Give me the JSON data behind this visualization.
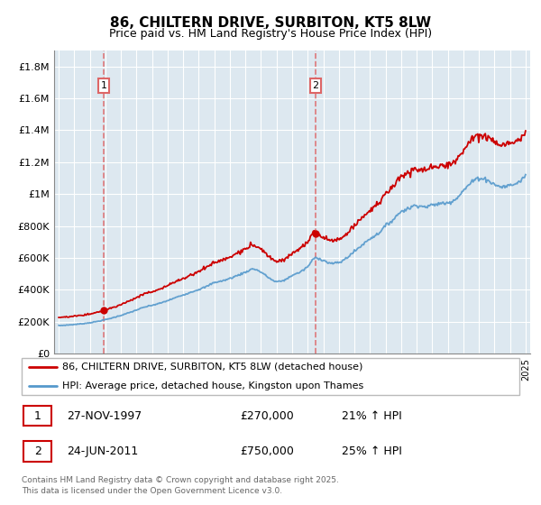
{
  "title": "86, CHILTERN DRIVE, SURBITON, KT5 8LW",
  "subtitle": "Price paid vs. HM Land Registry's House Price Index (HPI)",
  "ylabel_ticks": [
    "£0",
    "£200K",
    "£400K",
    "£600K",
    "£800K",
    "£1M",
    "£1.2M",
    "£1.4M",
    "£1.6M",
    "£1.8M"
  ],
  "ytick_values": [
    0,
    200000,
    400000,
    600000,
    800000,
    1000000,
    1200000,
    1400000,
    1600000,
    1800000
  ],
  "ylim": [
    0,
    1900000
  ],
  "legend_line1": "86, CHILTERN DRIVE, SURBITON, KT5 8LW (detached house)",
  "legend_line2": "HPI: Average price, detached house, Kingston upon Thames",
  "annotation1_label": "1",
  "annotation1_date": "27-NOV-1997",
  "annotation1_price": "£270,000",
  "annotation1_hpi": "21% ↑ HPI",
  "annotation2_label": "2",
  "annotation2_date": "24-JUN-2011",
  "annotation2_price": "£750,000",
  "annotation2_hpi": "25% ↑ HPI",
  "footer": "Contains HM Land Registry data © Crown copyright and database right 2025.\nThis data is licensed under the Open Government Licence v3.0.",
  "property_color": "#cc0000",
  "hpi_color": "#5599cc",
  "vline_color": "#dd6666",
  "chart_bg": "#dde8f0",
  "purchase1_year": 1997.9,
  "purchase2_year": 2011.5,
  "purchase1_price": 270000,
  "purchase2_price": 750000,
  "xmin": 1995,
  "xmax": 2025
}
